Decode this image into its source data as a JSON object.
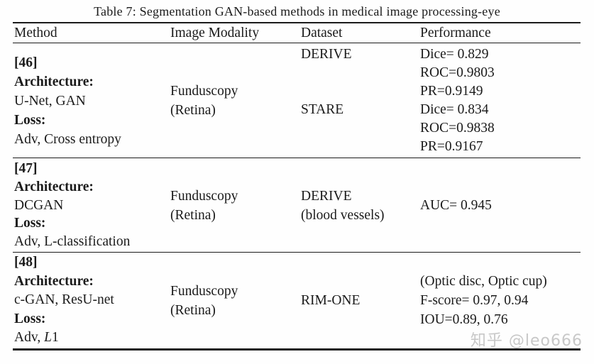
{
  "page": {
    "title": "Table 7: Segmentation GAN-based methods in medical image processing-eye",
    "watermark": "知乎 @leo666",
    "colors": {
      "background": "#fefefe",
      "text": "#1b1b1b",
      "rule": "#1b1b1b",
      "watermark": "#c8c8c8"
    }
  },
  "table": {
    "columns": [
      "Method",
      "Image Modality",
      "Dataset",
      "Performance"
    ],
    "rows": [
      {
        "method": {
          "ref": "[46]",
          "architecture_label": "Architecture:",
          "architecture": "U-Net, GAN",
          "loss_label": "Loss:",
          "loss": "Adv, Cross entropy",
          "loss_italic": "",
          "loss_suffix": ""
        },
        "modality": {
          "line1": "Funduscopy",
          "line2": "(Retina)"
        },
        "datasets": [
          "DERIVE",
          "STARE"
        ],
        "performance": [
          "Dice= 0.829",
          "ROC=0.9803",
          "PR=0.9149",
          "Dice= 0.834",
          "ROC=0.9838",
          "PR=0.9167"
        ]
      },
      {
        "method": {
          "ref": "[47]",
          "architecture_label": "Architecture:",
          "architecture": "DCGAN",
          "loss_label": "Loss:",
          "loss": "Adv, L-classification",
          "loss_italic": "",
          "loss_suffix": ""
        },
        "modality": {
          "line1": "Funduscopy",
          "line2": "(Retina)"
        },
        "datasets": [
          "DERIVE",
          "(blood vessels)"
        ],
        "performance": [
          "AUC= 0.945"
        ]
      },
      {
        "method": {
          "ref": "[48]",
          "architecture_label": "Architecture:",
          "architecture": "c-GAN, ResU-net",
          "loss_label": "Loss:",
          "loss": "Adv, ",
          "loss_italic": "L",
          "loss_suffix": "1"
        },
        "modality": {
          "line1": "Funduscopy",
          "line2": "(Retina)"
        },
        "datasets": [
          "RIM-ONE"
        ],
        "performance": [
          "(Optic disc, Optic cup)",
          "F-score= 0.97, 0.94",
          "IOU=0.89, 0.76"
        ]
      }
    ]
  }
}
